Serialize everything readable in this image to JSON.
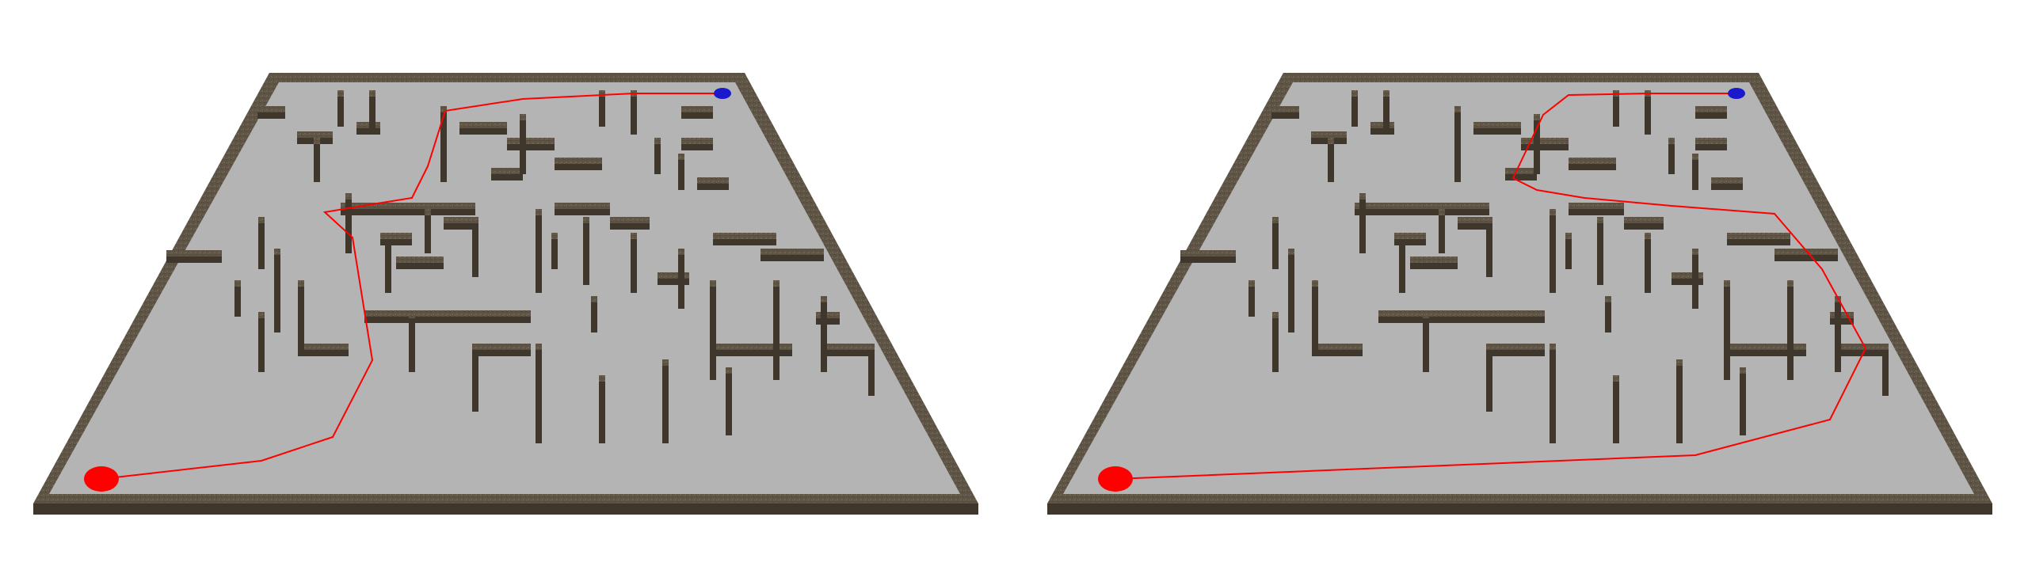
{
  "image": {
    "description_type": "two rendered 3D maze boards side by side with a planned path",
    "background_color": "#ffffff",
    "floor_color": "#b4b4b4",
    "wall_color": "#5e5446",
    "wall_side_color": "#3f372c",
    "path_color": "#ff0000",
    "start_marker_color": "#ff0000",
    "goal_marker_color": "#1a1acc"
  },
  "panels": [
    {
      "id": "left",
      "start_marker": "red-ellipse",
      "goal_marker": "blue-ellipse",
      "path": "red-polyline"
    },
    {
      "id": "right",
      "start_marker": "red-ellipse",
      "goal_marker": "blue-ellipse",
      "path": "red-polyline"
    }
  ]
}
